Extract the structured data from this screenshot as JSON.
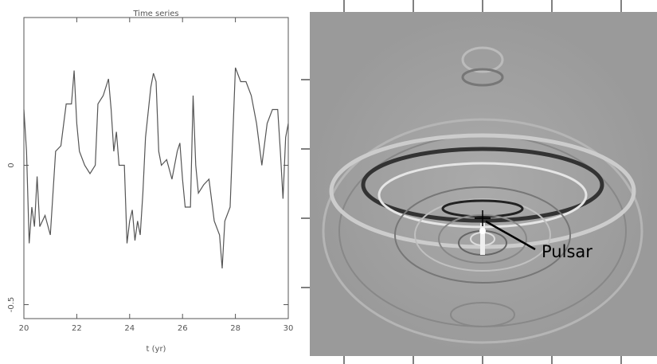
{
  "chart_data": {
    "type": "line",
    "title": "Time series",
    "xlabel": "t (yr)",
    "x": [
      20.0,
      20.1,
      20.2,
      20.3,
      20.4,
      20.5,
      20.6,
      20.8,
      21.0,
      21.1,
      21.2,
      21.4,
      21.6,
      21.8,
      21.9,
      22.0,
      22.1,
      22.3,
      22.5,
      22.7,
      22.8,
      23.0,
      23.2,
      23.3,
      23.4,
      23.5,
      23.6,
      23.8,
      23.9,
      24.0,
      24.1,
      24.2,
      24.3,
      24.4,
      24.5,
      24.6,
      24.8,
      24.9,
      25.0,
      25.1,
      25.2,
      25.4,
      25.6,
      25.8,
      25.9,
      26.0,
      26.1,
      26.3,
      26.4,
      26.5,
      26.6,
      26.8,
      27.0,
      27.2,
      27.4,
      27.5,
      27.6,
      27.8,
      28.0,
      28.2,
      28.4,
      28.6,
      28.8,
      29.0,
      29.2,
      29.4,
      29.6,
      29.7,
      29.8,
      29.9,
      30.0
    ],
    "series": [
      {
        "color": "#555555",
        "values": [
          0.2,
          0.05,
          -0.28,
          -0.15,
          -0.22,
          -0.04,
          -0.22,
          -0.18,
          -0.25,
          -0.1,
          0.05,
          0.07,
          0.22,
          0.22,
          0.34,
          0.15,
          0.05,
          0.0,
          -0.03,
          0.0,
          0.22,
          0.25,
          0.31,
          0.2,
          0.05,
          0.12,
          0.0,
          0.0,
          -0.28,
          -0.2,
          -0.16,
          -0.27,
          -0.2,
          -0.25,
          -0.1,
          0.1,
          0.28,
          0.33,
          0.3,
          0.05,
          0.0,
          0.02,
          -0.05,
          0.05,
          0.08,
          -0.05,
          -0.15,
          -0.15,
          0.25,
          0.0,
          -0.1,
          -0.07,
          -0.05,
          -0.2,
          -0.25,
          -0.37,
          -0.2,
          -0.15,
          0.35,
          0.3,
          0.3,
          0.25,
          0.15,
          0.0,
          0.15,
          0.2,
          0.2,
          0.05,
          -0.12,
          0.1,
          0.15
        ]
      }
    ],
    "xlim": [
      20,
      30
    ],
    "xticks": [
      20,
      22,
      24,
      26,
      28,
      30
    ],
    "ylim": [
      -0.55,
      0.53
    ],
    "yticks": [
      -0.5,
      0
    ]
  },
  "image": {
    "annotation": "Pulsar"
  }
}
